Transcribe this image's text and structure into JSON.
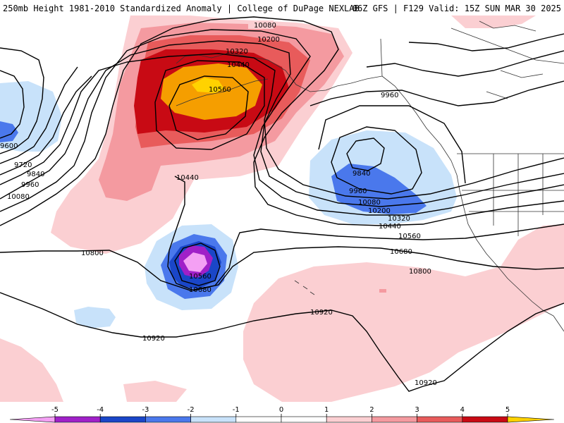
{
  "header": {
    "title": "250mb Height 1981-2010 Standardized Anomaly | College of DuPage NEXLAB",
    "valid": "06Z GFS | F129 Valid: 15Z SUN MAR 30 2025"
  },
  "colors": {
    "neg5": "#f4a0f4",
    "neg4": "#a020c8",
    "neg3": "#1a46c8",
    "neg2": "#4a78ec",
    "neg1": "#c8e2fa",
    "pos1": "#fbcfd2",
    "pos2": "#f49aa0",
    "pos3": "#e85b5b",
    "pos4": "#c80a14",
    "pos5": "#f59e00",
    "pos6": "#ffd200",
    "contour": "#000000",
    "coast": "#333333"
  },
  "contour_labels": [
    {
      "text": "10080"
    },
    {
      "text": "10200"
    },
    {
      "text": "10320"
    },
    {
      "text": "10440"
    },
    {
      "text": "10560"
    },
    {
      "text": "9960"
    },
    {
      "text": "9840"
    },
    {
      "text": "9960"
    },
    {
      "text": "10080"
    },
    {
      "text": "10200"
    },
    {
      "text": "10320"
    },
    {
      "text": "10440"
    },
    {
      "text": "10560"
    },
    {
      "text": "10680"
    },
    {
      "text": "10800"
    },
    {
      "text": "9600"
    },
    {
      "text": "9720"
    },
    {
      "text": "9840"
    },
    {
      "text": "9960"
    },
    {
      "text": "10080"
    },
    {
      "text": "10440"
    },
    {
      "text": "10800"
    },
    {
      "text": "10560"
    },
    {
      "text": "10680"
    },
    {
      "text": "10920"
    },
    {
      "text": "10920"
    },
    {
      "text": "10920"
    }
  ],
  "colorbar": {
    "ticks": [
      "-5",
      "-4",
      "-3",
      "-2",
      "-1",
      "0",
      "1",
      "2",
      "3",
      "4",
      "5"
    ]
  }
}
